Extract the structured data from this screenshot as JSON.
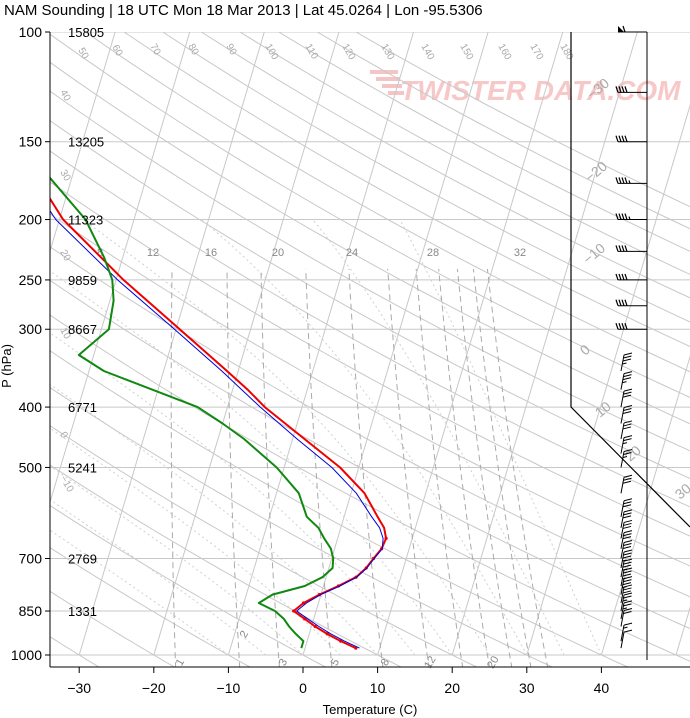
{
  "title": "NAM Sounding | 18 UTC Mon 18 Mar 2013 | Lat 45.0264 | Lon -95.5306",
  "watermark": "TWISTER DATA.COM",
  "colors": {
    "temperature": "#ee0000",
    "virtual_temperature": "#0000dd",
    "dewpoint": "#118811",
    "grid": "#bbbbbb",
    "hodo_line": "#000000"
  },
  "chart_data": {
    "type": "line",
    "title": "NAM Sounding | 18 UTC Mon 18 Mar 2013 | Lat 45.0264 | Lon -95.5306",
    "xlabel": "Temperature (C)",
    "ylabel": "P (hPa)",
    "xlim": [
      -35,
      49
    ],
    "ylim": [
      1000,
      100
    ],
    "y_scale": "log",
    "grid": true,
    "x_ticks": [
      "−30",
      "−20",
      "−10",
      "0",
      "10",
      "20",
      "30",
      "40"
    ],
    "x_tick_values": [
      -30,
      -20,
      -10,
      0,
      10,
      20,
      30,
      40
    ],
    "pressure_levels": [
      {
        "p": 100,
        "label": "100",
        "height": "15805"
      },
      {
        "p": 150,
        "label": "150",
        "height": "13205"
      },
      {
        "p": 200,
        "label": "200",
        "height": "11323"
      },
      {
        "p": 250,
        "label": "250",
        "height": "9859"
      },
      {
        "p": 300,
        "label": "300",
        "height": "8667"
      },
      {
        "p": 400,
        "label": "400",
        "height": "6771"
      },
      {
        "p": 500,
        "label": "500",
        "height": "5241"
      },
      {
        "p": 700,
        "label": "700",
        "height": "2769"
      },
      {
        "p": 850,
        "label": "850",
        "height": "1331"
      },
      {
        "p": 1000,
        "label": "1000",
        "height": ""
      }
    ],
    "series": [
      {
        "name": "Temperature",
        "color": "#ee0000",
        "p": [
          975,
          950,
          925,
          900,
          875,
          850,
          825,
          800,
          775,
          750,
          725,
          700,
          675,
          650,
          625,
          600,
          550,
          500,
          450,
          400,
          375,
          350,
          300,
          250,
          200,
          175,
          150,
          125,
          100
        ],
        "t": [
          6.8,
          4.5,
          2.4,
          0.5,
          -1.2,
          -3.0,
          -2.0,
          -0.2,
          2.0,
          4.0,
          5.0,
          5.6,
          6.3,
          6.5,
          5.8,
          4.5,
          1.8,
          -2.5,
          -8.4,
          -15.0,
          -18.0,
          -21.5,
          -29.5,
          -39.0,
          -49.5,
          -54.0,
          -58.0,
          -63.0,
          -67.5
        ]
      },
      {
        "name": "Virtual Temperature",
        "color": "#0000dd",
        "p": [
          975,
          950,
          925,
          900,
          875,
          850,
          825,
          800,
          775,
          750,
          725,
          700,
          675,
          650,
          625,
          600,
          550,
          500,
          450,
          400,
          375,
          350,
          300,
          250,
          200,
          175,
          150,
          125,
          100
        ],
        "t": [
          7.3,
          5.0,
          2.9,
          1.0,
          -0.8,
          -2.6,
          -1.6,
          0.0,
          2.2,
          4.1,
          5.1,
          5.7,
          6.4,
          6.1,
          5.2,
          3.7,
          0.7,
          -3.6,
          -9.4,
          -15.6,
          -18.8,
          -22.2,
          -30.2,
          -39.8,
          -50.5,
          -55.1,
          -59.1,
          -64.2,
          -68.7
        ]
      },
      {
        "name": "Dewpoint",
        "color": "#118811",
        "p": [
          975,
          950,
          925,
          900,
          875,
          850,
          825,
          800,
          775,
          750,
          725,
          700,
          675,
          650,
          625,
          600,
          550,
          500,
          450,
          425,
          400,
          350,
          330,
          300,
          270,
          250,
          230,
          200,
          150,
          125,
          100
        ],
        "t": [
          -0.5,
          -0.5,
          -1.8,
          -3.0,
          -4.0,
          -5.5,
          -8.0,
          -6.5,
          -2.5,
          -0.5,
          0.5,
          0.2,
          -0.5,
          -1.8,
          -3.0,
          -5.0,
          -7.0,
          -11.0,
          -16.5,
          -20.0,
          -24.0,
          -38.0,
          -42.0,
          -39.0,
          -39.5,
          -40.5,
          -42.5,
          -46.5,
          -58.5,
          -67.0,
          -72.0
        ]
      }
    ],
    "isotherm_labels": [
      "40",
      "50",
      "60",
      "70",
      "80",
      "90",
      "100",
      "110",
      "120",
      "130",
      "140",
      "150",
      "160",
      "170",
      "180"
    ],
    "theta_labels": [
      "−10",
      "0",
      "10",
      "20",
      "30",
      "40",
      "50",
      "60"
    ],
    "mixing_ratio_top_labels": [
      "8",
      "12",
      "16",
      "20",
      "24",
      "28",
      "32"
    ],
    "mixing_ratio_bottom_labels": [
      "1",
      "2",
      "3",
      "5",
      "8",
      "12",
      "20"
    ],
    "right_scale_labels": [
      "−30",
      "−20",
      "−10",
      "0",
      "10",
      "20",
      "30"
    ],
    "wind_barbs": [
      {
        "p": 100,
        "speed_kt": 60
      },
      {
        "p": 125,
        "speed_kt": 40
      },
      {
        "p": 150,
        "speed_kt": 40
      },
      {
        "p": 175,
        "speed_kt": 45
      },
      {
        "p": 200,
        "speed_kt": 45
      },
      {
        "p": 225,
        "speed_kt": 40
      },
      {
        "p": 250,
        "speed_kt": 40
      },
      {
        "p": 275,
        "speed_kt": 40
      },
      {
        "p": 300,
        "speed_kt": 40
      },
      {
        "p": 350,
        "speed_kt": 35
      },
      {
        "p": 375,
        "speed_kt": 35
      },
      {
        "p": 400,
        "speed_kt": 30
      },
      {
        "p": 425,
        "speed_kt": 30
      },
      {
        "p": 450,
        "speed_kt": 30
      },
      {
        "p": 475,
        "speed_kt": 25
      },
      {
        "p": 500,
        "speed_kt": 25
      },
      {
        "p": 550,
        "speed_kt": 30
      },
      {
        "p": 600,
        "speed_kt": 30
      },
      {
        "p": 625,
        "speed_kt": 30
      },
      {
        "p": 650,
        "speed_kt": 30
      },
      {
        "p": 675,
        "speed_kt": 30
      },
      {
        "p": 700,
        "speed_kt": 30
      },
      {
        "p": 725,
        "speed_kt": 35
      },
      {
        "p": 750,
        "speed_kt": 35
      },
      {
        "p": 775,
        "speed_kt": 35
      },
      {
        "p": 800,
        "speed_kt": 35
      },
      {
        "p": 825,
        "speed_kt": 30
      },
      {
        "p": 850,
        "speed_kt": 25
      },
      {
        "p": 875,
        "speed_kt": 25
      },
      {
        "p": 900,
        "speed_kt": 20
      },
      {
        "p": 950,
        "speed_kt": 15
      },
      {
        "p": 975,
        "speed_kt": 10
      }
    ]
  }
}
